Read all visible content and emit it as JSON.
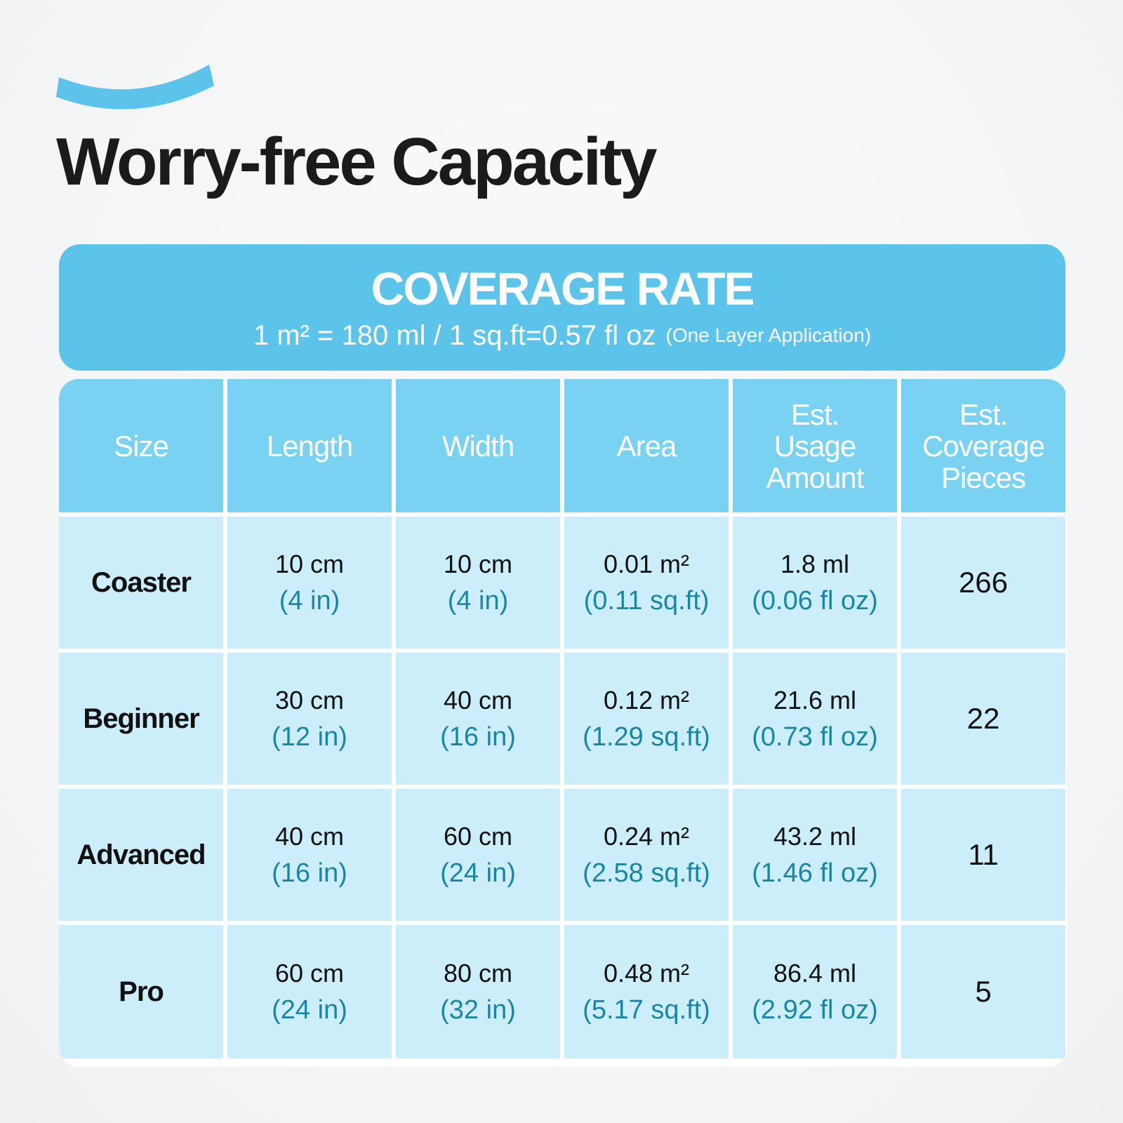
{
  "colors": {
    "accent": "#5cc4ea",
    "header_cells": "#7ad2f2",
    "body_cells": "#cbeefa",
    "converted_values": "#1a86a6",
    "title": "#1b1b1b"
  },
  "decoration": {
    "arc_icon": "blue-arc-swoosh"
  },
  "title": "Worry-free Capacity",
  "banner": {
    "heading": "COVERAGE RATE",
    "rate": "1 m² = 180 ml  /  1 sq.ft=0.57 fl oz",
    "note": "(One Layer Application)"
  },
  "table": {
    "headers": [
      "Size",
      "Length",
      "Width",
      "Area",
      "Est. Usage Amount",
      "Est. Coverage Pieces"
    ],
    "rows": [
      {
        "size": "Coaster",
        "length": "10 cm",
        "length_in": "(4 in)",
        "width": "10 cm",
        "width_in": "(4 in)",
        "area": "0.01 m²",
        "area_sqft": "(0.11 sq.ft)",
        "usage": "1.8 ml",
        "usage_floz": "(0.06 fl oz)",
        "pieces": "266"
      },
      {
        "size": "Beginner",
        "length": "30 cm",
        "length_in": "(12 in)",
        "width": "40 cm",
        "width_in": "(16 in)",
        "area": "0.12 m²",
        "area_sqft": "(1.29 sq.ft)",
        "usage": "21.6 ml",
        "usage_floz": "(0.73 fl oz)",
        "pieces": "22"
      },
      {
        "size": "Advanced",
        "length": "40 cm",
        "length_in": "(16 in)",
        "width": "60 cm",
        "width_in": "(24 in)",
        "area": "0.24 m²",
        "area_sqft": "(2.58 sq.ft)",
        "usage": "43.2 ml",
        "usage_floz": "(1.46 fl oz)",
        "pieces": "11"
      },
      {
        "size": "Pro",
        "length": "60 cm",
        "length_in": "(24 in)",
        "width": "80 cm",
        "width_in": "(32 in)",
        "area": "0.48 m²",
        "area_sqft": "(5.17 sq.ft)",
        "usage": "86.4 ml",
        "usage_floz": "(2.92 fl oz)",
        "pieces": "5"
      }
    ]
  }
}
